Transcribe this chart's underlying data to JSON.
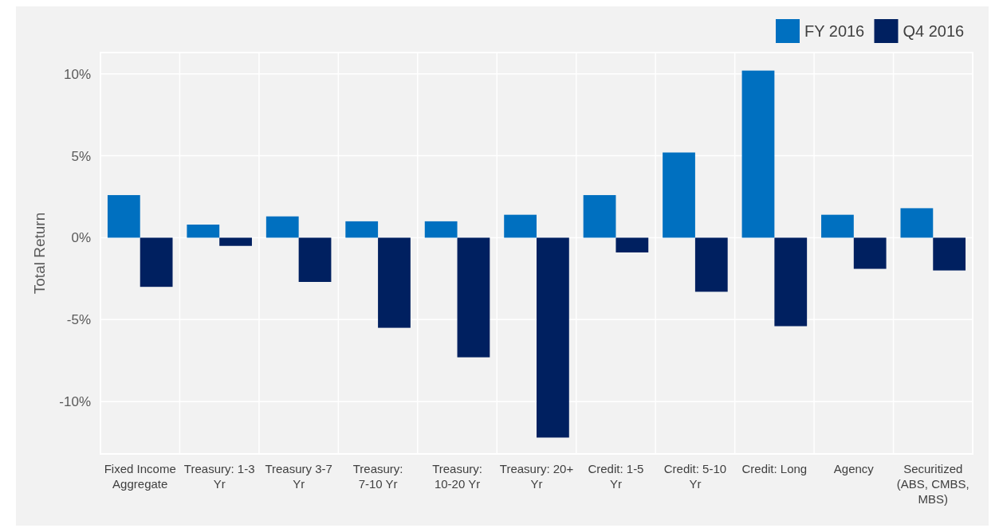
{
  "chart_data": {
    "type": "bar",
    "ylabel": "Total Return",
    "categories": [
      "Fixed Income Aggregate",
      "Treasury: 1-3 Yr",
      "Treasury 3-7 Yr",
      "Treasury: 7-10 Yr",
      "Treasury: 10-20 Yr",
      "Treasury: 20+ Yr",
      "Credit: 1-5 Yr",
      "Credit: 5-10 Yr",
      "Credit: Long",
      "Agency",
      "Securitized (ABS, CMBS, MBS)"
    ],
    "series": [
      {
        "name": "FY 2016",
        "color": "#0070c0",
        "values": [
          2.6,
          0.8,
          1.3,
          1.0,
          1.0,
          1.4,
          2.6,
          5.2,
          10.2,
          1.4,
          1.8
        ]
      },
      {
        "name": "Q4 2016",
        "color": "#002060",
        "values": [
          -3.0,
          -0.5,
          -2.7,
          -5.5,
          -7.3,
          -12.2,
          -0.9,
          -3.3,
          -5.4,
          -1.9,
          -2.0
        ]
      }
    ],
    "ylim": [
      -13.2,
      11.3
    ],
    "yticks": [
      {
        "value": -10,
        "label": "-10%"
      },
      {
        "value": -5,
        "label": "-5%"
      },
      {
        "value": 0,
        "label": "0%"
      },
      {
        "value": 5,
        "label": "5%"
      },
      {
        "value": 10,
        "label": "10%"
      }
    ],
    "grid": true,
    "legend": "top right"
  }
}
